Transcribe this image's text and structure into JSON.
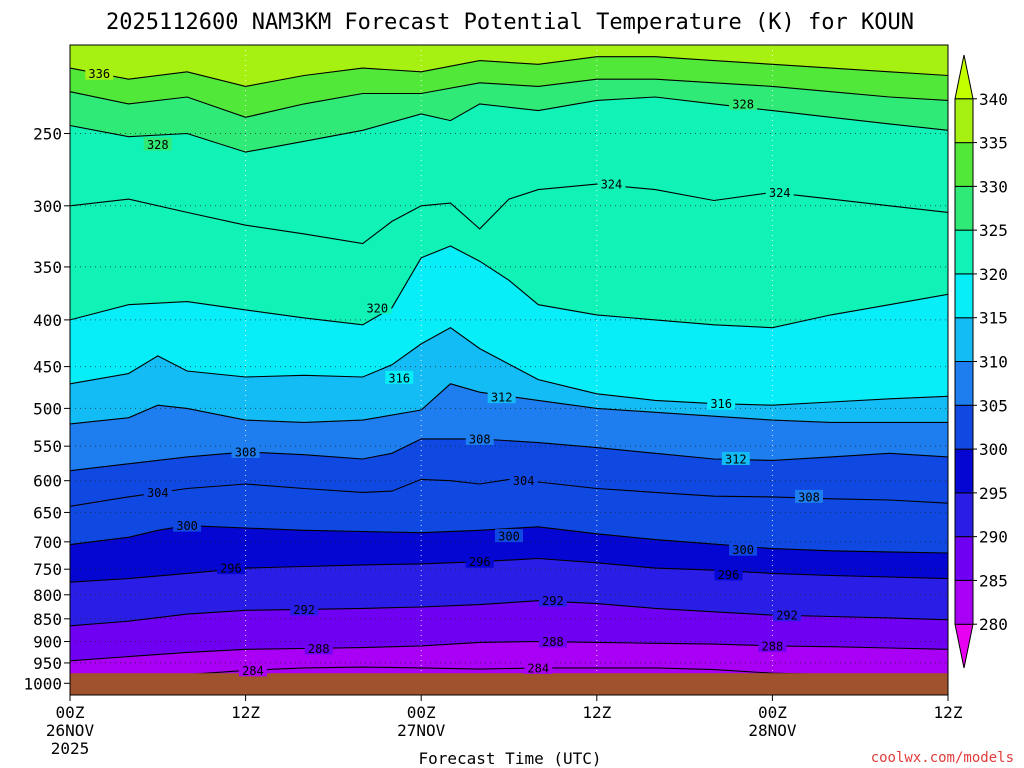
{
  "chart_data": {
    "type": "contour",
    "title": "2025112600 NAM3KM Forecast Potential Temperature (K) for KOUN",
    "xlabel": "Forecast Time (UTC)",
    "ylabel": "",
    "x_ticks": [
      {
        "hour": 0,
        "label": "00Z",
        "sub": "26NOV",
        "sub2": "2025"
      },
      {
        "hour": 12,
        "label": "12Z",
        "sub": "",
        "sub2": ""
      },
      {
        "hour": 24,
        "label": "00Z",
        "sub": "27NOV",
        "sub2": ""
      },
      {
        "hour": 36,
        "label": "12Z",
        "sub": "",
        "sub2": ""
      },
      {
        "hour": 48,
        "label": "00Z",
        "sub": "28NOV",
        "sub2": ""
      },
      {
        "hour": 60,
        "label": "12Z",
        "sub": "",
        "sub2": ""
      }
    ],
    "xlim": [
      0,
      60
    ],
    "y_scale": "log",
    "ylim": [
      1030,
      200
    ],
    "y_ticks": [
      250,
      300,
      350,
      400,
      450,
      500,
      550,
      600,
      650,
      700,
      750,
      800,
      850,
      900,
      950,
      1000
    ],
    "surface_pressure": 975,
    "colorbar": {
      "levels": [
        280,
        285,
        290,
        295,
        300,
        305,
        310,
        315,
        320,
        325,
        330,
        335,
        340
      ],
      "colors": [
        "#e800f0",
        "#a900f5",
        "#7000f2",
        "#2a1ee6",
        "#0606d2",
        "#1048e2",
        "#1e7ef0",
        "#13bcf4",
        "#08eef8",
        "#10f2b6",
        "#30ea78",
        "#52e83a",
        "#a6f012",
        "#c4ff00"
      ]
    },
    "contours": [
      {
        "value": 284,
        "label": "284",
        "points": [
          [
            0,
            992
          ],
          [
            4,
            985
          ],
          [
            8,
            978
          ],
          [
            12,
            968
          ],
          [
            16,
            962
          ],
          [
            20,
            960
          ],
          [
            24,
            962
          ],
          [
            28,
            965
          ],
          [
            32,
            962
          ],
          [
            36,
            962
          ],
          [
            40,
            962
          ],
          [
            44,
            966
          ],
          [
            48,
            975
          ],
          [
            52,
            978
          ],
          [
            56,
            980
          ],
          [
            60,
            982
          ]
        ]
      },
      {
        "value": 288,
        "label": "288",
        "points": [
          [
            0,
            945
          ],
          [
            4,
            935
          ],
          [
            8,
            925
          ],
          [
            12,
            918
          ],
          [
            16,
            916
          ],
          [
            20,
            914
          ],
          [
            24,
            910
          ],
          [
            28,
            902
          ],
          [
            32,
            900
          ],
          [
            36,
            902
          ],
          [
            40,
            904
          ],
          [
            44,
            906
          ],
          [
            48,
            910
          ],
          [
            52,
            912
          ],
          [
            56,
            915
          ],
          [
            60,
            918
          ]
        ]
      },
      {
        "value": 292,
        "label": "292",
        "points": [
          [
            0,
            865
          ],
          [
            4,
            855
          ],
          [
            8,
            840
          ],
          [
            12,
            832
          ],
          [
            16,
            830
          ],
          [
            20,
            828
          ],
          [
            24,
            825
          ],
          [
            28,
            820
          ],
          [
            32,
            812
          ],
          [
            36,
            818
          ],
          [
            40,
            828
          ],
          [
            44,
            835
          ],
          [
            48,
            842
          ],
          [
            52,
            845
          ],
          [
            56,
            848
          ],
          [
            60,
            852
          ]
        ]
      },
      {
        "value": 296,
        "label": "296",
        "points": [
          [
            0,
            775
          ],
          [
            4,
            768
          ],
          [
            8,
            758
          ],
          [
            12,
            748
          ],
          [
            16,
            745
          ],
          [
            20,
            742
          ],
          [
            24,
            740
          ],
          [
            28,
            736
          ],
          [
            32,
            730
          ],
          [
            36,
            738
          ],
          [
            40,
            748
          ],
          [
            44,
            752
          ],
          [
            48,
            758
          ],
          [
            52,
            762
          ],
          [
            56,
            765
          ],
          [
            60,
            768
          ]
        ]
      },
      {
        "value": 300,
        "label": "300",
        "points": [
          [
            0,
            705
          ],
          [
            4,
            692
          ],
          [
            6,
            680
          ],
          [
            8,
            672
          ],
          [
            12,
            676
          ],
          [
            16,
            680
          ],
          [
            20,
            682
          ],
          [
            24,
            684
          ],
          [
            28,
            680
          ],
          [
            32,
            674
          ],
          [
            36,
            686
          ],
          [
            40,
            696
          ],
          [
            44,
            704
          ],
          [
            48,
            712
          ],
          [
            52,
            716
          ],
          [
            56,
            718
          ],
          [
            60,
            720
          ]
        ]
      },
      {
        "value": 304,
        "label": "304",
        "points": [
          [
            0,
            640
          ],
          [
            4,
            625
          ],
          [
            8,
            612
          ],
          [
            12,
            605
          ],
          [
            16,
            612
          ],
          [
            20,
            618
          ],
          [
            22,
            616
          ],
          [
            24,
            598
          ],
          [
            26,
            600
          ],
          [
            28,
            605
          ],
          [
            30,
            598
          ],
          [
            32,
            602
          ],
          [
            36,
            612
          ],
          [
            40,
            618
          ],
          [
            44,
            624
          ],
          [
            48,
            625
          ],
          [
            52,
            628
          ],
          [
            56,
            630
          ],
          [
            60,
            635
          ]
        ]
      },
      {
        "value": 308,
        "label": "308",
        "points": [
          [
            0,
            585
          ],
          [
            4,
            575
          ],
          [
            8,
            565
          ],
          [
            12,
            558
          ],
          [
            16,
            562
          ],
          [
            20,
            568
          ],
          [
            22,
            560
          ],
          [
            24,
            540
          ],
          [
            28,
            540
          ],
          [
            32,
            545
          ],
          [
            36,
            552
          ],
          [
            40,
            560
          ],
          [
            44,
            568
          ],
          [
            48,
            570
          ],
          [
            52,
            565
          ],
          [
            56,
            560
          ],
          [
            60,
            565
          ]
        ]
      },
      {
        "value": 312,
        "label": "312",
        "points": [
          [
            0,
            520
          ],
          [
            4,
            512
          ],
          [
            6,
            496
          ],
          [
            8,
            500
          ],
          [
            12,
            515
          ],
          [
            16,
            518
          ],
          [
            20,
            515
          ],
          [
            24,
            502
          ],
          [
            26,
            470
          ],
          [
            28,
            480
          ],
          [
            32,
            490
          ],
          [
            36,
            500
          ],
          [
            40,
            505
          ],
          [
            44,
            510
          ],
          [
            48,
            515
          ],
          [
            52,
            518
          ],
          [
            56,
            518
          ],
          [
            60,
            518
          ]
        ]
      },
      {
        "value": 316,
        "label": "316",
        "points": [
          [
            0,
            470
          ],
          [
            4,
            458
          ],
          [
            6,
            438
          ],
          [
            8,
            455
          ],
          [
            12,
            462
          ],
          [
            16,
            460
          ],
          [
            20,
            462
          ],
          [
            22,
            448
          ],
          [
            24,
            425
          ],
          [
            26,
            408
          ],
          [
            28,
            430
          ],
          [
            32,
            465
          ],
          [
            36,
            482
          ],
          [
            40,
            490
          ],
          [
            44,
            494
          ],
          [
            48,
            496
          ],
          [
            52,
            492
          ],
          [
            56,
            488
          ],
          [
            60,
            485
          ]
        ]
      },
      {
        "value": 320,
        "label": "320",
        "points": [
          [
            0,
            400
          ],
          [
            4,
            385
          ],
          [
            8,
            382
          ],
          [
            12,
            390
          ],
          [
            16,
            398
          ],
          [
            20,
            405
          ],
          [
            22,
            388
          ],
          [
            24,
            342
          ],
          [
            26,
            332
          ],
          [
            28,
            345
          ],
          [
            30,
            362
          ],
          [
            32,
            385
          ],
          [
            36,
            395
          ],
          [
            40,
            400
          ],
          [
            44,
            405
          ],
          [
            48,
            408
          ],
          [
            52,
            395
          ],
          [
            56,
            385
          ],
          [
            60,
            375
          ]
        ]
      },
      {
        "value": 324,
        "label": "324",
        "points": [
          [
            0,
            300
          ],
          [
            4,
            295
          ],
          [
            8,
            305
          ],
          [
            12,
            315
          ],
          [
            16,
            322
          ],
          [
            20,
            330
          ],
          [
            22,
            312
          ],
          [
            24,
            300
          ],
          [
            26,
            298
          ],
          [
            28,
            318
          ],
          [
            30,
            295
          ],
          [
            32,
            288
          ],
          [
            36,
            284
          ],
          [
            40,
            288
          ],
          [
            44,
            296
          ],
          [
            48,
            290
          ],
          [
            52,
            295
          ],
          [
            56,
            300
          ],
          [
            60,
            305
          ]
        ]
      },
      {
        "value": 328,
        "label": "328",
        "points": [
          [
            0,
            245
          ],
          [
            4,
            252
          ],
          [
            8,
            250
          ],
          [
            12,
            262
          ],
          [
            16,
            255
          ],
          [
            20,
            248
          ],
          [
            24,
            238
          ],
          [
            26,
            242
          ],
          [
            28,
            232
          ],
          [
            32,
            236
          ],
          [
            36,
            230
          ],
          [
            40,
            228
          ],
          [
            44,
            232
          ],
          [
            48,
            236
          ],
          [
            52,
            240
          ],
          [
            56,
            244
          ],
          [
            60,
            248
          ]
        ]
      },
      {
        "value": 332,
        "label": "",
        "points": [
          [
            0,
            225
          ],
          [
            4,
            232
          ],
          [
            8,
            228
          ],
          [
            12,
            240
          ],
          [
            16,
            232
          ],
          [
            20,
            226
          ],
          [
            24,
            226
          ],
          [
            28,
            220
          ],
          [
            32,
            222
          ],
          [
            36,
            218
          ],
          [
            40,
            218
          ],
          [
            44,
            220
          ],
          [
            48,
            222
          ],
          [
            52,
            225
          ],
          [
            56,
            228
          ],
          [
            60,
            230
          ]
        ]
      },
      {
        "value": 336,
        "label": "336",
        "points": [
          [
            0,
            212
          ],
          [
            4,
            218
          ],
          [
            8,
            214
          ],
          [
            12,
            222
          ],
          [
            16,
            216
          ],
          [
            20,
            212
          ],
          [
            24,
            214
          ],
          [
            28,
            208
          ],
          [
            32,
            210
          ],
          [
            36,
            206
          ],
          [
            40,
            206
          ],
          [
            44,
            208
          ],
          [
            48,
            210
          ],
          [
            52,
            212
          ],
          [
            56,
            214
          ],
          [
            60,
            216
          ]
        ]
      }
    ],
    "labels": [
      {
        "text": "336",
        "x": 2.0,
        "p": 215
      },
      {
        "text": "328",
        "x": 6.0,
        "p": 257
      },
      {
        "text": "328",
        "x": 46.0,
        "p": 232
      },
      {
        "text": "324",
        "x": 37.0,
        "p": 284
      },
      {
        "text": "324",
        "x": 48.5,
        "p": 290
      },
      {
        "text": "320",
        "x": 21.0,
        "p": 388
      },
      {
        "text": "316",
        "x": 22.5,
        "p": 463
      },
      {
        "text": "316",
        "x": 44.5,
        "p": 494
      },
      {
        "text": "312",
        "x": 29.5,
        "p": 486
      },
      {
        "text": "312",
        "x": 45.5,
        "p": 568
      },
      {
        "text": "308",
        "x": 12.0,
        "p": 558
      },
      {
        "text": "308",
        "x": 28.0,
        "p": 540
      },
      {
        "text": "308",
        "x": 50.5,
        "p": 625
      },
      {
        "text": "304",
        "x": 6.0,
        "p": 618
      },
      {
        "text": "304",
        "x": 31.0,
        "p": 600
      },
      {
        "text": "300",
        "x": 8.0,
        "p": 672
      },
      {
        "text": "300",
        "x": 30.0,
        "p": 690
      },
      {
        "text": "300",
        "x": 46.0,
        "p": 714
      },
      {
        "text": "296",
        "x": 11.0,
        "p": 748
      },
      {
        "text": "296",
        "x": 28.0,
        "p": 736
      },
      {
        "text": "296",
        "x": 45.0,
        "p": 760
      },
      {
        "text": "292",
        "x": 16.0,
        "p": 830
      },
      {
        "text": "292",
        "x": 33.0,
        "p": 812
      },
      {
        "text": "292",
        "x": 49.0,
        "p": 842
      },
      {
        "text": "288",
        "x": 17.0,
        "p": 916
      },
      {
        "text": "288",
        "x": 33.0,
        "p": 900
      },
      {
        "text": "288",
        "x": 48.0,
        "p": 910
      },
      {
        "text": "284",
        "x": 12.5,
        "p": 968
      },
      {
        "text": "284",
        "x": 32.0,
        "p": 962
      }
    ]
  },
  "credit": "coolwx.com/models"
}
